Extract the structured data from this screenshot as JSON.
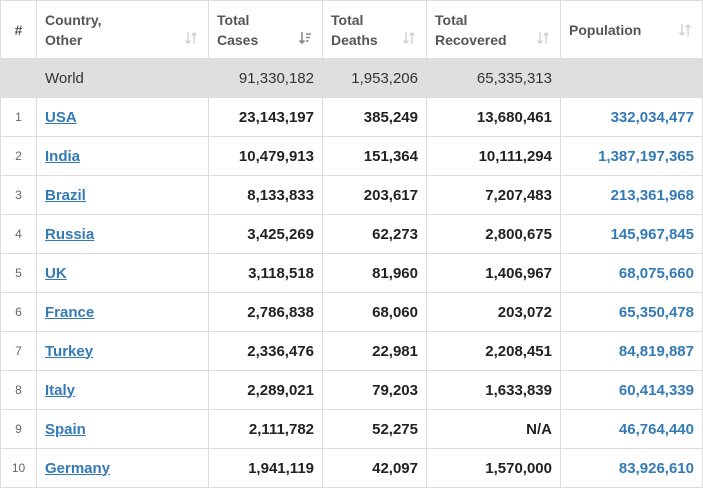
{
  "headers": {
    "rank": "#",
    "country_line1": "Country,",
    "country_line2": "Other",
    "cases_line1": "Total",
    "cases_line2": "Cases",
    "deaths_line1": "Total",
    "deaths_line2": "Deaths",
    "recovered_line1": "Total",
    "recovered_line2": "Recovered",
    "population": "Population"
  },
  "icons": {
    "sort_default": "sort-arrows-icon",
    "sort_active": "sort-descending-icon"
  },
  "world": {
    "country": "World",
    "total_cases": "91,330,182",
    "total_deaths": "1,953,206",
    "total_recovered": "65,335,313",
    "population": ""
  },
  "rows": [
    {
      "rank": "1",
      "country": "USA",
      "total_cases": "23,143,197",
      "total_deaths": "385,249",
      "total_recovered": "13,680,461",
      "population": "332,034,477"
    },
    {
      "rank": "2",
      "country": "India",
      "total_cases": "10,479,913",
      "total_deaths": "151,364",
      "total_recovered": "10,111,294",
      "population": "1,387,197,365"
    },
    {
      "rank": "3",
      "country": "Brazil",
      "total_cases": "8,133,833",
      "total_deaths": "203,617",
      "total_recovered": "7,207,483",
      "population": "213,361,968"
    },
    {
      "rank": "4",
      "country": "Russia",
      "total_cases": "3,425,269",
      "total_deaths": "62,273",
      "total_recovered": "2,800,675",
      "population": "145,967,845"
    },
    {
      "rank": "5",
      "country": "UK",
      "total_cases": "3,118,518",
      "total_deaths": "81,960",
      "total_recovered": "1,406,967",
      "population": "68,075,660"
    },
    {
      "rank": "6",
      "country": "France",
      "total_cases": "2,786,838",
      "total_deaths": "68,060",
      "total_recovered": "203,072",
      "population": "65,350,478"
    },
    {
      "rank": "7",
      "country": "Turkey",
      "total_cases": "2,336,476",
      "total_deaths": "22,981",
      "total_recovered": "2,208,451",
      "population": "84,819,887"
    },
    {
      "rank": "8",
      "country": "Italy",
      "total_cases": "2,289,021",
      "total_deaths": "79,203",
      "total_recovered": "1,633,839",
      "population": "60,414,339"
    },
    {
      "rank": "9",
      "country": "Spain",
      "total_cases": "2,111,782",
      "total_deaths": "52,275",
      "total_recovered": "N/A",
      "population": "46,764,440"
    },
    {
      "rank": "10",
      "country": "Germany",
      "total_cases": "1,941,119",
      "total_deaths": "42,097",
      "total_recovered": "1,570,000",
      "population": "83,926,610"
    }
  ]
}
